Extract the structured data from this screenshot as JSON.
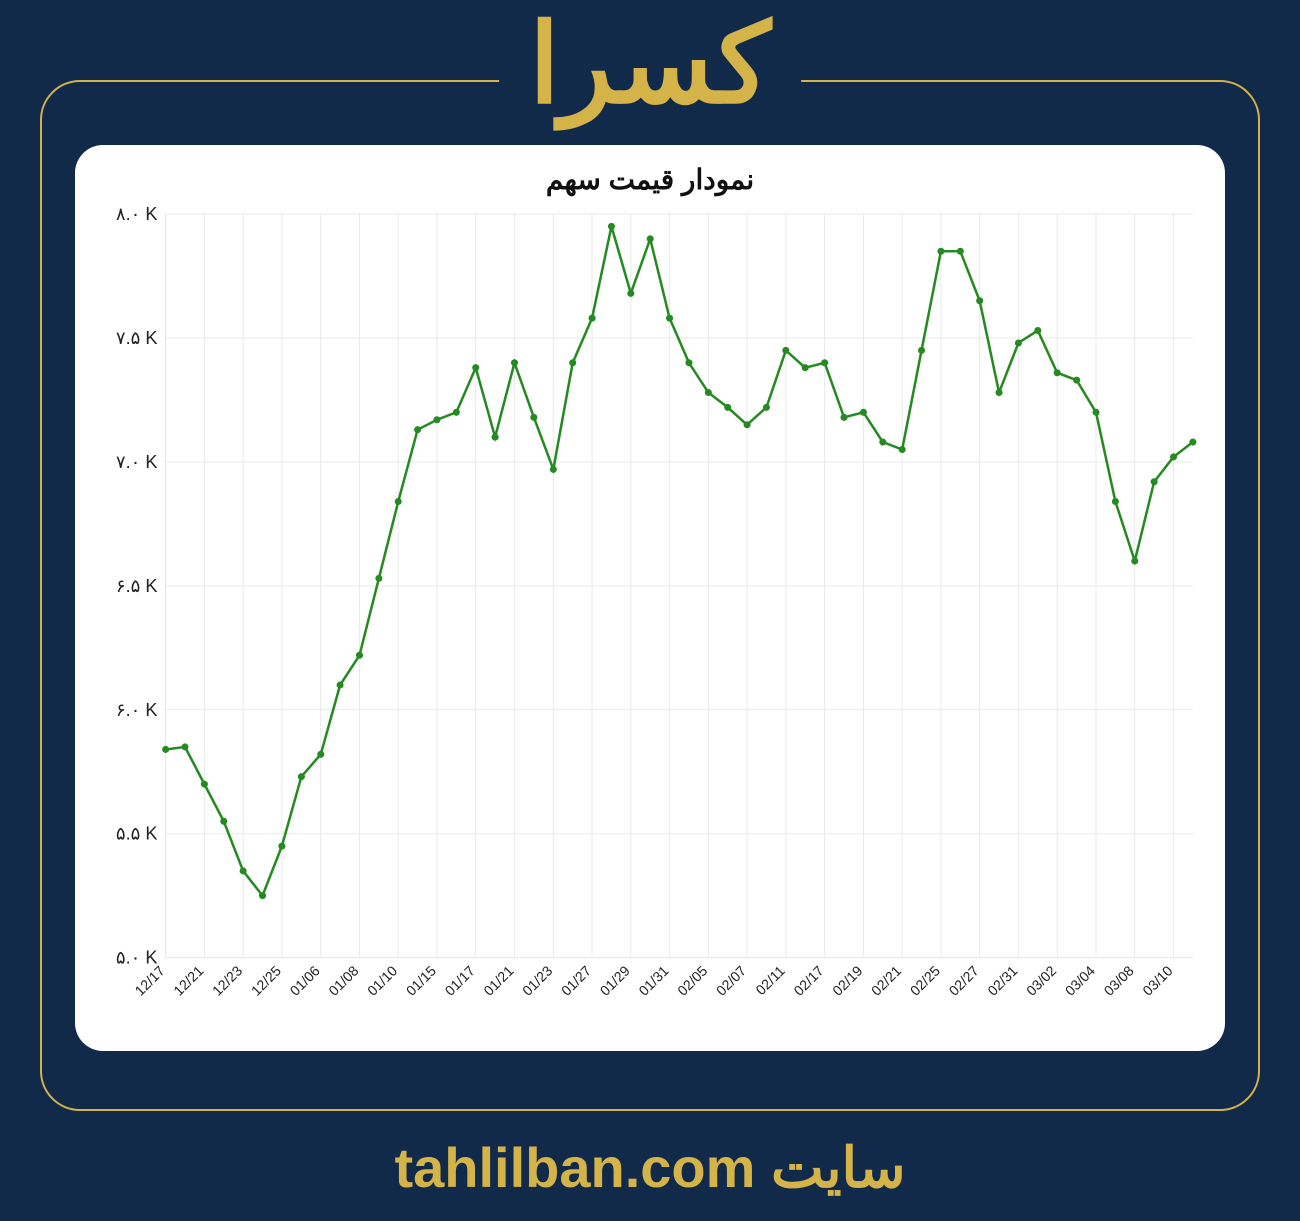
{
  "header": {
    "title": "کسرا"
  },
  "footer": {
    "site_label": "سایت",
    "site_url": "tahlilban.com"
  },
  "chart": {
    "type": "line",
    "title": "نمودار قیمت سهم",
    "title_fontsize": 28,
    "background_color": "#ffffff",
    "grid_color": "#e9e9e9",
    "axis_color": "#888888",
    "line_color": "#268a22",
    "marker_color": "#268a22",
    "line_width": 2.5,
    "marker_radius": 3.5,
    "ylim": [
      5.0,
      8.0
    ],
    "ytick_step": 0.5,
    "y_tick_labels": [
      "۵.۰ K",
      "۵.۵ K",
      "۶.۰ K",
      "۶.۵ K",
      "۷.۰ K",
      "۷.۵ K",
      "۸.۰ K"
    ],
    "y_tick_values": [
      5.0,
      5.5,
      6.0,
      6.5,
      7.0,
      7.5,
      8.0
    ],
    "y_label_fontsize": 18,
    "x_label_fontsize": 14,
    "x_label_rotation": -45,
    "x_tick_labels": [
      "12/17",
      "12/21",
      "12/23",
      "12/25",
      "01/06",
      "01/08",
      "01/10",
      "01/15",
      "01/17",
      "01/21",
      "01/23",
      "01/27",
      "01/29",
      "01/31",
      "02/05",
      "02/07",
      "02/11",
      "02/17",
      "02/19",
      "02/21",
      "02/25",
      "02/27",
      "02/31",
      "03/02",
      "03/04",
      "03/08",
      "03/10"
    ],
    "x_tick_indices": [
      0,
      2,
      4,
      6,
      8,
      10,
      12,
      14,
      16,
      18,
      20,
      22,
      24,
      26,
      28,
      30,
      32,
      34,
      36,
      38,
      40,
      42,
      44,
      46,
      48,
      50,
      52
    ],
    "series": {
      "values": [
        5.84,
        5.85,
        5.7,
        5.55,
        5.35,
        5.25,
        5.45,
        5.73,
        5.82,
        6.1,
        6.22,
        6.53,
        6.84,
        7.13,
        7.17,
        7.2,
        7.38,
        7.1,
        7.4,
        7.18,
        6.97,
        7.4,
        7.58,
        7.95,
        7.68,
        7.9,
        7.58,
        7.4,
        7.28,
        7.22,
        7.15,
        7.22,
        7.45,
        7.38,
        7.4,
        7.18,
        7.2,
        7.08,
        7.05,
        7.45,
        7.85,
        7.85,
        7.65,
        7.28,
        7.48,
        7.53,
        7.36,
        7.33,
        7.2,
        6.84,
        6.6,
        6.92,
        7.02,
        7.08
      ]
    }
  },
  "colors": {
    "page_bg": "#122a4a",
    "accent": "#d4b349"
  }
}
